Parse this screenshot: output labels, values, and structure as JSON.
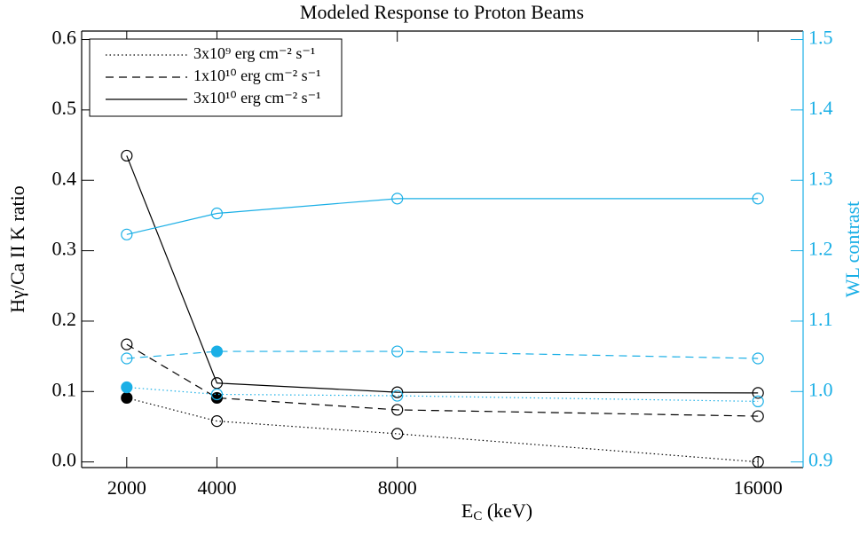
{
  "chart_data": {
    "type": "line",
    "title": "Modeled Response to Proton Beams",
    "xlabel": [
      "E",
      "C",
      " (keV)"
    ],
    "ylabel": "Hγ/Ca II K ratio",
    "y2label": "WL contrast",
    "x": [
      2000,
      4000,
      8000,
      16000
    ],
    "xlim": [
      1000,
      17000
    ],
    "xticks": [
      2000,
      4000,
      8000,
      16000
    ],
    "ylim": [
      -0.008,
      0.612
    ],
    "yticks": [
      {
        "value": 0,
        "label": "0.0"
      },
      0.1,
      0.2,
      0.3,
      0.4,
      0.5,
      0.6
    ],
    "y2lim": [
      0.892,
      1.512
    ],
    "y2ticks": [
      0.9,
      {
        "value": 1,
        "label": "1.0"
      },
      1.1,
      1.2,
      1.3,
      1.4,
      1.5
    ],
    "y2color": "#1aafe6",
    "legend": "upper left",
    "series": [
      {
        "name": "3x10⁹ erg cm⁻² s⁻¹",
        "color": "#000000",
        "linestyle": "dotted",
        "values": [
          0.091,
          0.058,
          0.04,
          0.0
        ],
        "filled": [
          true,
          false,
          false,
          false
        ]
      },
      {
        "name": "1x10¹⁰ erg cm⁻² s⁻¹",
        "color": "#000000",
        "linestyle": "dashed",
        "values": [
          0.167,
          0.091,
          0.074,
          0.065
        ],
        "filled": [
          false,
          true,
          false,
          false
        ]
      },
      {
        "name": "3x10¹⁰ erg cm⁻² s⁻¹",
        "color": "#000000",
        "linestyle": "solid",
        "values": [
          0.435,
          0.112,
          0.099,
          0.098
        ],
        "filled": [
          false,
          false,
          false,
          false
        ]
      },
      {
        "color": "#1aafe6",
        "linestyle": "dotted",
        "axis": "y2",
        "values": [
          1.006,
          0.996,
          0.994,
          0.986
        ],
        "filled": [
          true,
          false,
          false,
          false
        ]
      },
      {
        "color": "#1aafe6",
        "linestyle": "dashed",
        "axis": "y2",
        "values": [
          1.047,
          1.057,
          1.057,
          1.047
        ],
        "filled": [
          false,
          true,
          false,
          false
        ]
      },
      {
        "color": "#1aafe6",
        "linestyle": "solid",
        "axis": "y2",
        "values": [
          1.223,
          1.253,
          1.274,
          1.274
        ],
        "filled": [
          false,
          false,
          false,
          false
        ]
      }
    ]
  }
}
